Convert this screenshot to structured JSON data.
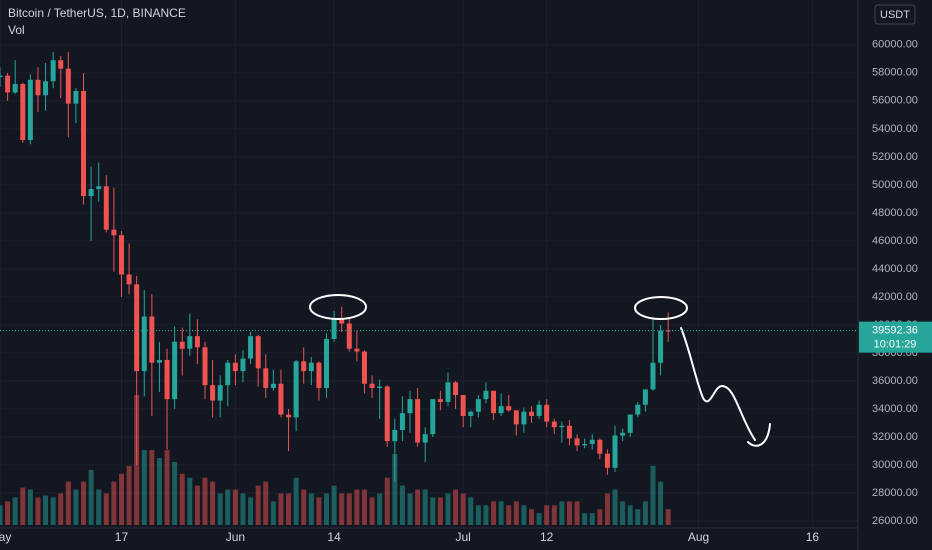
{
  "chart_data": {
    "type": "candlestick",
    "title": "Bitcoin / TetherUS, 1D, BINANCE",
    "volume_label": "Vol",
    "currency": "USDT",
    "countdown": "10:01:29",
    "up_color": "#26a69a",
    "down_color": "#ef5350",
    "grid": true,
    "x": [
      "05-01",
      "05-02",
      "05-03",
      "05-04",
      "05-05",
      "05-06",
      "05-07",
      "05-08",
      "05-09",
      "05-10",
      "05-11",
      "05-12",
      "05-13",
      "05-14",
      "05-15",
      "05-16",
      "05-17",
      "05-18",
      "05-19",
      "05-20",
      "05-21",
      "05-22",
      "05-23",
      "05-24",
      "05-25",
      "05-26",
      "05-27",
      "05-28",
      "05-29",
      "05-30",
      "05-31",
      "06-01",
      "06-02",
      "06-03",
      "06-04",
      "06-05",
      "06-06",
      "06-07",
      "06-08",
      "06-09",
      "06-10",
      "06-11",
      "06-12",
      "06-13",
      "06-14",
      "06-15",
      "06-16",
      "06-17",
      "06-18",
      "06-19",
      "06-20",
      "06-21",
      "06-22",
      "06-23",
      "06-24",
      "06-25",
      "06-26",
      "06-27",
      "06-28",
      "06-29",
      "06-30",
      "07-01",
      "07-02",
      "07-03",
      "07-04",
      "07-05",
      "07-06",
      "07-07",
      "07-08",
      "07-09",
      "07-10",
      "07-11",
      "07-12",
      "07-13",
      "07-14",
      "07-15",
      "07-16",
      "07-17",
      "07-18",
      "07-19",
      "07-20",
      "07-21",
      "07-22",
      "07-23",
      "07-24",
      "07-25",
      "07-26",
      "07-27",
      "07-28"
    ],
    "open": [
      57700,
      57800,
      56600,
      57200,
      53200,
      57500,
      56400,
      57400,
      58900,
      58300,
      55800,
      56700,
      49200,
      49700,
      49900,
      46800,
      46400,
      43600,
      42900,
      36700,
      40600,
      37300,
      37500,
      34700,
      38800,
      38300,
      39200,
      38400,
      35700,
      34600,
      35700,
      37300,
      36700,
      37600,
      39200,
      36900,
      35500,
      35800,
      33600,
      33400,
      37400,
      36700,
      37300,
      35500,
      39000,
      40500,
      40100,
      38300,
      38100,
      35800,
      35500,
      35600,
      31700,
      32500,
      33700,
      34700,
      31600,
      32200,
      34700,
      34500,
      35900,
      35000,
      33500,
      33800,
      34700,
      35300,
      33700,
      34200,
      33900,
      32900,
      33800,
      33500,
      34300,
      33100,
      32700,
      32800,
      31900,
      31400,
      31500,
      31800,
      30800,
      29800,
      32100,
      32300,
      33600,
      34300,
      35400,
      37300,
      39600
    ],
    "high": [
      58400,
      58000,
      58900,
      57300,
      57900,
      58400,
      58700,
      59500,
      59200,
      59500,
      56900,
      58000,
      51300,
      51600,
      50700,
      49800,
      46700,
      45800,
      43500,
      42500,
      42200,
      38800,
      38300,
      39900,
      39800,
      40800,
      40400,
      38800,
      37500,
      36400,
      37500,
      37900,
      38200,
      39500,
      39300,
      37900,
      36800,
      36800,
      34000,
      37500,
      38400,
      37700,
      37400,
      39400,
      41000,
      41300,
      40500,
      39600,
      38200,
      36400,
      36100,
      35700,
      33300,
      34900,
      35300,
      35500,
      32700,
      34700,
      35300,
      36600,
      36000,
      35000,
      33900,
      35000,
      35900,
      35300,
      35100,
      35000,
      33900,
      34100,
      34200,
      34600,
      34700,
      33300,
      33100,
      33200,
      32200,
      31900,
      32200,
      31900,
      31100,
      32800,
      32600,
      33600,
      34500,
      35400,
      40500,
      40000,
      40900
    ],
    "low": [
      57000,
      56000,
      56500,
      53000,
      52900,
      55200,
      55300,
      56900,
      56200,
      53400,
      54400,
      48600,
      46000,
      48800,
      46600,
      43800,
      42000,
      42200,
      30000,
      34900,
      33500,
      35200,
      31100,
      34000,
      36400,
      37800,
      37200,
      34700,
      33400,
      33400,
      34200,
      35700,
      35900,
      37200,
      35600,
      34800,
      35300,
      33400,
      31000,
      32400,
      35800,
      35700,
      34600,
      34800,
      38800,
      39500,
      38100,
      37400,
      35100,
      34800,
      33300,
      31300,
      28800,
      31700,
      32300,
      31300,
      30200,
      32000,
      33900,
      34200,
      34000,
      32700,
      32700,
      33400,
      34400,
      33200,
      33500,
      33800,
      32100,
      32300,
      33000,
      33300,
      32700,
      32200,
      31600,
      31400,
      31000,
      31200,
      31100,
      30400,
      29300,
      29500,
      31700,
      32000,
      33400,
      33800,
      35300,
      36400,
      38800
    ],
    "close": [
      57800,
      56600,
      57200,
      53200,
      57500,
      56400,
      57400,
      58900,
      58300,
      55800,
      56700,
      49200,
      49700,
      49900,
      46800,
      46400,
      43600,
      42900,
      36700,
      40600,
      37300,
      37500,
      34700,
      38800,
      38300,
      39200,
      38400,
      35700,
      34600,
      35700,
      37300,
      36700,
      37600,
      39200,
      36900,
      35500,
      35800,
      33600,
      33400,
      37400,
      36700,
      37300,
      35500,
      39000,
      40500,
      40100,
      38300,
      38100,
      35800,
      35500,
      35600,
      31700,
      32500,
      33700,
      34700,
      31600,
      32200,
      34700,
      34500,
      35900,
      35000,
      33500,
      33800,
      34700,
      35300,
      33700,
      34200,
      33900,
      32900,
      33800,
      33500,
      34300,
      33100,
      32700,
      32800,
      31900,
      31400,
      31500,
      31800,
      30800,
      29800,
      32100,
      32300,
      33600,
      34300,
      35400,
      37300,
      39600,
      39592.36
    ],
    "volume": [
      50,
      60,
      70,
      95,
      90,
      70,
      75,
      70,
      80,
      110,
      90,
      110,
      140,
      90,
      80,
      110,
      130,
      150,
      330,
      190,
      190,
      170,
      190,
      160,
      130,
      120,
      100,
      120,
      110,
      80,
      90,
      90,
      80,
      70,
      100,
      110,
      60,
      80,
      80,
      120,
      90,
      80,
      70,
      80,
      100,
      80,
      80,
      90,
      90,
      70,
      80,
      120,
      180,
      100,
      80,
      90,
      90,
      70,
      70,
      80,
      90,
      80,
      70,
      50,
      50,
      60,
      60,
      50,
      60,
      50,
      40,
      30,
      50,
      50,
      60,
      60,
      60,
      30,
      30,
      40,
      80,
      90,
      60,
      50,
      40,
      60,
      150,
      110,
      40
    ],
    "xlim": [
      "05-01",
      "08-22"
    ],
    "xticks": [
      {
        "value": "05-01",
        "label": "May"
      },
      {
        "value": "05-17",
        "label": "17"
      },
      {
        "value": "06-01",
        "label": "Jun"
      },
      {
        "value": "06-14",
        "label": "14"
      },
      {
        "value": "07-01",
        "label": "Jul"
      },
      {
        "value": "07-12",
        "label": "12"
      },
      {
        "value": "08-01",
        "label": "Aug"
      },
      {
        "value": "08-16",
        "label": "16"
      }
    ],
    "ylim": [
      25500,
      63200
    ],
    "yticks": [
      {
        "value": 26000,
        "label": "26000.00"
      },
      {
        "value": 28000,
        "label": "28000.00"
      },
      {
        "value": 30000,
        "label": "30000.00"
      },
      {
        "value": 32000,
        "label": "32000.00"
      },
      {
        "value": 34000,
        "label": "34000.00"
      },
      {
        "value": 36000,
        "label": "36000.00"
      },
      {
        "value": 38000,
        "label": "38000.00"
      },
      {
        "value": 40000,
        "label": "40000.00"
      },
      {
        "value": 42000,
        "label": "42000.00"
      },
      {
        "value": 44000,
        "label": "44000.00"
      },
      {
        "value": 46000,
        "label": "46000.00"
      },
      {
        "value": 48000,
        "label": "48000.00"
      },
      {
        "value": 50000,
        "label": "50000.00"
      },
      {
        "value": 52000,
        "label": "52000.00"
      },
      {
        "value": 54000,
        "label": "54000.00"
      },
      {
        "value": 56000,
        "label": "56000.00"
      },
      {
        "value": 58000,
        "label": "58000.00"
      },
      {
        "value": 60000,
        "label": "60000.00"
      }
    ]
  }
}
